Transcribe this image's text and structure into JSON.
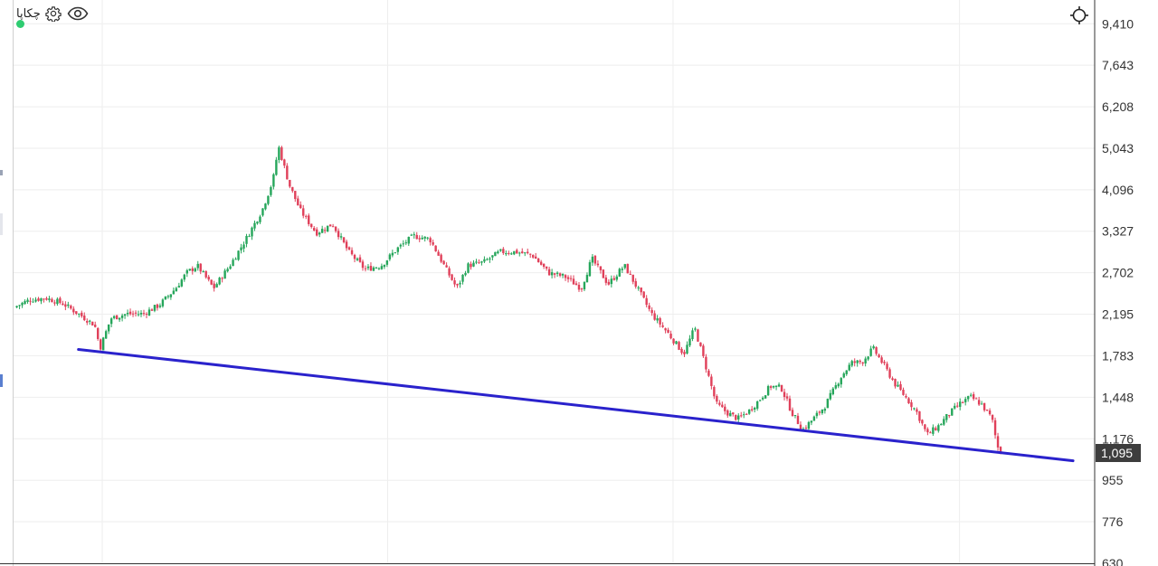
{
  "header": {
    "symbol": "چکاپا",
    "settings_icon": "gear-icon",
    "visibility_icon": "eye-icon",
    "status_icon": "status-dot",
    "crosshair_icon": "crosshair-icon"
  },
  "colors": {
    "up": "#26a65b",
    "down": "#e0405a",
    "trendline": "#2a22cc",
    "grid": "#eeeeee",
    "axis_text": "#333333",
    "status": "#2ecc71",
    "last_price_bg": "#3d3d3d"
  },
  "chart_data": {
    "type": "candlestick",
    "y_scale": "log",
    "ylim": [
      630,
      10600
    ],
    "yticks": [
      "9,410",
      "7,643",
      "6,208",
      "5,043",
      "4,096",
      "3,327",
      "2,702",
      "2,195",
      "1,783",
      "1,448",
      "1,176",
      "955",
      "776",
      "630"
    ],
    "ytick_values": [
      9410,
      7643,
      6208,
      5043,
      4096,
      3327,
      2702,
      2195,
      1783,
      1448,
      1176,
      955,
      776,
      630
    ],
    "last_price": 1095,
    "last_price_label": "1,095",
    "grid": true,
    "close_path": [
      [
        0,
        2270
      ],
      [
        1.5,
        2360
      ],
      [
        3,
        2380
      ],
      [
        4.5,
        2320
      ],
      [
        6,
        2200
      ],
      [
        7.5,
        2080
      ],
      [
        8,
        1850
      ],
      [
        9,
        2150
      ],
      [
        10.5,
        2200
      ],
      [
        12,
        2200
      ],
      [
        13.5,
        2300
      ],
      [
        15,
        2500
      ],
      [
        16,
        2700
      ],
      [
        17,
        2800
      ],
      [
        18.5,
        2500
      ],
      [
        20,
        2800
      ],
      [
        21.5,
        3200
      ],
      [
        23,
        3700
      ],
      [
        24,
        4300
      ],
      [
        24.5,
        5100
      ],
      [
        25.5,
        4200
      ],
      [
        26.5,
        3700
      ],
      [
        28,
        3300
      ],
      [
        29.5,
        3450
      ],
      [
        31,
        3000
      ],
      [
        32.5,
        2750
      ],
      [
        34,
        2800
      ],
      [
        35.5,
        3050
      ],
      [
        37,
        3250
      ],
      [
        38.5,
        3200
      ],
      [
        40,
        2750
      ],
      [
        41,
        2500
      ],
      [
        42,
        2800
      ],
      [
        43.5,
        2850
      ],
      [
        45,
        3000
      ],
      [
        46.5,
        3000
      ],
      [
        48,
        2950
      ],
      [
        49.5,
        2700
      ],
      [
        51,
        2650
      ],
      [
        52.5,
        2500
      ],
      [
        53.5,
        2900
      ],
      [
        55,
        2550
      ],
      [
        56.5,
        2800
      ],
      [
        57.5,
        2550
      ],
      [
        59,
        2200
      ],
      [
        60.5,
        2000
      ],
      [
        62,
        1800
      ],
      [
        63,
        2050
      ],
      [
        64,
        1700
      ],
      [
        65,
        1400
      ],
      [
        66,
        1340
      ],
      [
        67,
        1300
      ],
      [
        68,
        1350
      ],
      [
        69,
        1430
      ],
      [
        70,
        1530
      ],
      [
        71,
        1520
      ],
      [
        72,
        1340
      ],
      [
        73,
        1230
      ],
      [
        73.7,
        1280
      ],
      [
        75,
        1380
      ],
      [
        76.5,
        1600
      ],
      [
        77.5,
        1720
      ],
      [
        78.5,
        1730
      ],
      [
        79.5,
        1850
      ],
      [
        80.5,
        1700
      ],
      [
        81.5,
        1550
      ],
      [
        82.5,
        1450
      ],
      [
        83.5,
        1350
      ],
      [
        84.5,
        1200
      ],
      [
        85.5,
        1250
      ],
      [
        86.5,
        1330
      ],
      [
        87.5,
        1400
      ],
      [
        88.5,
        1450
      ],
      [
        89.5,
        1400
      ],
      [
        90.5,
        1300
      ],
      [
        91,
        1130
      ],
      [
        91.5,
        1095
      ]
    ],
    "trendline": [
      [
        6,
        1840
      ],
      [
        98,
        1053
      ]
    ]
  }
}
